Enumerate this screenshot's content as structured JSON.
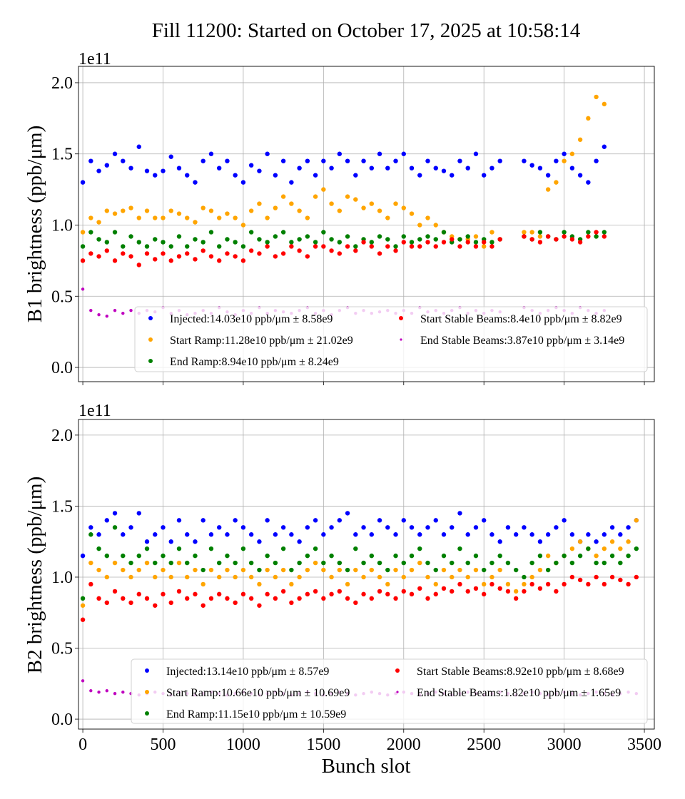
{
  "title": "Fill 11200: Started on October 17, 2025 at 10:58:14",
  "chart_data": [
    {
      "type": "scatter",
      "panel": "B1",
      "ylabel": "B1 brightness (ppb/μm)",
      "offset_label": "1e11",
      "xlabel": "",
      "xlim": [
        -27,
        3562
      ],
      "ylim": [
        -0.1,
        2.115
      ],
      "yticks": [
        "0.0",
        "0.5",
        "1.0",
        "1.5",
        "2.0"
      ],
      "ytick_values": [
        0,
        0.5,
        1.0,
        1.5,
        2.0
      ],
      "xtick_values": [
        0,
        500,
        1000,
        1500,
        2000,
        2500,
        3000,
        3500
      ],
      "xticks": [],
      "grid": true,
      "legend_placement": "lower-right",
      "x_start": 0,
      "x_step": 50,
      "series": [
        {
          "name": "Injected:14.03e10 ppb/μm ± 8.58e9",
          "color": "#0000ff",
          "y": [
            1.3,
            1.45,
            1.38,
            1.42,
            1.5,
            1.45,
            1.4,
            1.55,
            1.38,
            1.35,
            1.38,
            1.48,
            1.4,
            1.35,
            1.3,
            1.45,
            1.5,
            1.4,
            1.45,
            1.35,
            1.3,
            1.42,
            1.38,
            1.5,
            1.35,
            1.45,
            1.3,
            1.4,
            1.45,
            1.35,
            1.45,
            1.4,
            1.5,
            1.45,
            1.35,
            1.45,
            1.4,
            1.5,
            1.4,
            1.45,
            1.5,
            1.4,
            1.35,
            1.45,
            1.4,
            1.38,
            1.35,
            1.45,
            1.4,
            1.5,
            1.35,
            1.4,
            1.45,
            null,
            null,
            1.45,
            1.42,
            1.4,
            1.35,
            1.45,
            1.5,
            1.4,
            1.35,
            1.3,
            1.45,
            1.55
          ]
        },
        {
          "name": "Start Ramp:11.28e10 ppb/μm ± 21.02e9",
          "color": "#ffa500",
          "y": [
            0.95,
            1.05,
            1.02,
            1.1,
            1.08,
            1.1,
            1.12,
            1.05,
            1.1,
            1.05,
            1.05,
            1.1,
            1.08,
            1.05,
            1.02,
            1.12,
            1.1,
            1.05,
            1.08,
            1.05,
            1.0,
            1.1,
            1.15,
            1.05,
            1.12,
            1.2,
            1.15,
            1.1,
            1.05,
            1.2,
            1.25,
            1.15,
            1.1,
            1.2,
            1.18,
            1.12,
            1.15,
            1.1,
            1.05,
            1.15,
            1.12,
            1.08,
            1.0,
            1.05,
            1.0,
            0.95,
            0.92,
            0.9,
            0.9,
            0.92,
            0.85,
            0.95,
            0.9,
            null,
            null,
            0.95,
            0.95,
            0.92,
            1.25,
            1.3,
            1.45,
            1.5,
            1.6,
            1.75,
            1.9,
            1.85
          ]
        },
        {
          "name": "End Ramp:8.94e10 ppb/μm ± 8.24e9",
          "color": "#008000",
          "y": [
            0.85,
            0.95,
            0.9,
            0.88,
            0.95,
            0.85,
            0.92,
            0.88,
            0.85,
            0.9,
            0.88,
            0.85,
            0.92,
            0.85,
            0.9,
            0.88,
            0.95,
            0.85,
            0.9,
            0.88,
            0.85,
            0.95,
            0.9,
            0.88,
            0.92,
            0.95,
            0.88,
            0.9,
            0.92,
            0.88,
            0.95,
            0.9,
            0.88,
            0.92,
            0.85,
            0.9,
            0.88,
            0.92,
            0.9,
            0.85,
            0.92,
            0.88,
            0.9,
            0.92,
            0.9,
            0.95,
            0.88,
            0.9,
            0.92,
            0.88,
            0.9,
            0.88,
            0.9,
            null,
            null,
            0.92,
            0.9,
            0.95,
            0.92,
            0.9,
            0.95,
            0.92,
            0.9,
            0.95,
            0.92,
            0.95
          ]
        },
        {
          "name": "Start Stable Beams:8.4e10 ppb/μm ± 8.82e9",
          "color": "#ff0000",
          "y": [
            0.75,
            0.8,
            0.78,
            0.82,
            0.75,
            0.8,
            0.78,
            0.72,
            0.8,
            0.76,
            0.8,
            0.75,
            0.78,
            0.8,
            0.76,
            0.82,
            0.78,
            0.75,
            0.8,
            0.78,
            0.75,
            0.82,
            0.8,
            0.85,
            0.78,
            0.8,
            0.85,
            0.82,
            0.78,
            0.85,
            0.85,
            0.82,
            0.8,
            0.85,
            0.82,
            0.88,
            0.85,
            0.8,
            0.85,
            0.82,
            0.88,
            0.85,
            0.85,
            0.88,
            0.85,
            0.88,
            0.9,
            0.85,
            0.88,
            0.85,
            0.88,
            0.85,
            0.9,
            null,
            null,
            0.92,
            0.9,
            0.88,
            0.92,
            0.9,
            0.92,
            0.9,
            0.88,
            0.92,
            0.95,
            0.92
          ]
        },
        {
          "name": "End Stable Beams:3.87e10 ppb/μm ± 3.14e9",
          "color": "#bf00bf",
          "y": [
            0.55,
            0.4,
            0.37,
            0.36,
            0.4,
            0.38,
            0.4,
            0.38,
            0.4,
            0.39,
            0.42,
            0.38,
            0.4,
            0.37,
            0.38,
            0.4,
            0.38,
            0.42,
            0.39,
            0.37,
            0.4,
            0.38,
            0.42,
            0.38,
            0.4,
            0.39,
            0.38,
            0.4,
            0.42,
            0.38,
            0.4,
            0.37,
            0.4,
            0.42,
            0.38,
            0.4,
            0.38,
            0.39,
            0.4,
            0.38,
            0.4,
            0.38,
            0.42,
            0.39,
            0.4,
            0.38,
            0.4,
            0.42,
            0.38,
            0.4,
            0.38,
            0.4,
            0.39,
            null,
            null,
            0.42,
            0.4,
            0.38,
            0.4,
            0.42,
            0.4,
            0.38,
            0.42,
            0.4,
            0.38,
            0.4
          ]
        }
      ]
    },
    {
      "type": "scatter",
      "panel": "B2",
      "ylabel": "B2 brightness (ppb/μm)",
      "offset_label": "1e11",
      "xlabel": "Bunch slot",
      "xlim": [
        -27,
        3562
      ],
      "ylim": [
        -0.07,
        2.11
      ],
      "yticks": [
        "0.0",
        "0.5",
        "1.0",
        "1.5",
        "2.0"
      ],
      "ytick_values": [
        0,
        0.5,
        1.0,
        1.5,
        2.0
      ],
      "xtick_values": [
        0,
        500,
        1000,
        1500,
        2000,
        2500,
        3000,
        3500
      ],
      "xticks": [
        "0",
        "500",
        "1000",
        "1500",
        "2000",
        "2500",
        "3000",
        "3500"
      ],
      "grid": true,
      "legend_placement": "lower-right",
      "x_start": 0,
      "x_step": 50,
      "series": [
        {
          "name": "Injected:13.14e10 ppb/μm ± 8.57e9",
          "color": "#0000ff",
          "y": [
            1.15,
            1.35,
            1.3,
            1.4,
            1.45,
            1.3,
            1.35,
            1.45,
            1.25,
            1.3,
            1.35,
            1.25,
            1.4,
            1.3,
            1.25,
            1.4,
            1.3,
            1.35,
            1.3,
            1.4,
            1.35,
            1.3,
            1.25,
            1.4,
            1.3,
            1.35,
            1.3,
            1.25,
            1.35,
            1.4,
            1.3,
            1.35,
            1.4,
            1.45,
            1.3,
            1.35,
            1.3,
            1.4,
            1.35,
            1.3,
            1.4,
            1.35,
            1.3,
            1.35,
            1.4,
            1.3,
            1.35,
            1.45,
            1.3,
            1.35,
            1.4,
            1.3,
            1.25,
            1.35,
            1.3,
            1.35,
            1.3,
            1.25,
            1.3,
            1.35,
            1.4,
            1.3,
            1.25,
            1.3,
            1.25,
            1.3,
            1.35,
            1.3,
            1.35,
            1.4
          ]
        },
        {
          "name": "Start Ramp:10.66e10 ppb/μm ± 10.69e9",
          "color": "#ffa500",
          "y": [
            0.8,
            1.1,
            1.05,
            1.0,
            1.1,
            1.05,
            1.0,
            1.05,
            1.1,
            1.0,
            1.05,
            1.0,
            1.1,
            1.0,
            1.05,
            0.95,
            1.05,
            1.0,
            1.05,
            1.0,
            1.05,
            1.0,
            0.95,
            1.05,
            1.0,
            1.05,
            0.95,
            1.0,
            1.05,
            1.1,
            1.05,
            1.0,
            1.05,
            0.95,
            1.05,
            1.0,
            1.05,
            1.0,
            0.95,
            1.05,
            1.0,
            1.05,
            1.1,
            1.0,
            0.95,
            1.05,
            1.0,
            1.05,
            1.0,
            1.05,
            0.95,
            1.0,
            1.05,
            0.95,
            0.9,
            0.95,
            1.0,
            1.05,
            1.15,
            1.1,
            1.15,
            1.2,
            1.25,
            1.2,
            1.15,
            1.2,
            1.25,
            1.2,
            1.25,
            1.4
          ]
        },
        {
          "name": "End Ramp:11.15e10 ppb/μm ± 10.59e9",
          "color": "#008000",
          "y": [
            0.85,
            1.3,
            1.2,
            1.15,
            1.35,
            1.15,
            1.1,
            1.15,
            1.2,
            1.1,
            1.15,
            1.1,
            1.2,
            1.1,
            1.15,
            1.05,
            1.2,
            1.1,
            1.15,
            1.1,
            1.2,
            1.1,
            1.05,
            1.15,
            1.1,
            1.2,
            1.05,
            1.1,
            1.15,
            1.2,
            1.1,
            1.15,
            1.1,
            1.05,
            1.2,
            1.1,
            1.15,
            1.1,
            1.05,
            1.15,
            1.1,
            1.15,
            1.2,
            1.1,
            1.05,
            1.15,
            1.1,
            1.2,
            1.1,
            1.15,
            1.05,
            1.1,
            1.15,
            1.1,
            1.05,
            1.0,
            1.1,
            1.15,
            1.05,
            1.1,
            1.15,
            1.1,
            1.15,
            1.2,
            1.1,
            1.1,
            1.15,
            1.1,
            1.15,
            1.2
          ]
        },
        {
          "name": "Start Stable Beams:8.92e10 ppb/μm ± 8.68e9",
          "color": "#ff0000",
          "y": [
            0.7,
            0.95,
            0.85,
            0.82,
            0.9,
            0.85,
            0.82,
            0.88,
            0.85,
            0.8,
            0.88,
            0.82,
            0.9,
            0.85,
            0.88,
            0.8,
            0.85,
            0.88,
            0.85,
            0.82,
            0.88,
            0.85,
            0.8,
            0.88,
            0.85,
            0.9,
            0.82,
            0.85,
            0.88,
            0.9,
            0.85,
            0.88,
            0.9,
            0.85,
            0.82,
            0.88,
            0.85,
            0.9,
            0.88,
            0.85,
            0.9,
            0.88,
            0.92,
            0.85,
            0.88,
            0.92,
            0.9,
            0.95,
            0.9,
            0.92,
            0.88,
            0.95,
            0.92,
            0.9,
            0.85,
            0.9,
            0.95,
            0.92,
            0.95,
            0.9,
            0.95,
            1.0,
            0.98,
            0.95,
            1.0,
            0.95,
            1.0,
            0.98,
            0.95,
            1.0
          ]
        },
        {
          "name": "End Stable Beams:1.82e10 ppb/μm ± 1.65e9",
          "color": "#bf00bf",
          "y": [
            0.27,
            0.2,
            0.19,
            0.2,
            0.18,
            0.19,
            0.18,
            0.17,
            0.18,
            0.19,
            0.18,
            0.17,
            0.19,
            0.18,
            0.17,
            0.18,
            0.19,
            0.18,
            0.17,
            0.18,
            0.19,
            0.18,
            0.17,
            0.18,
            0.19,
            0.18,
            0.17,
            0.18,
            0.19,
            0.18,
            0.17,
            0.18,
            0.19,
            0.18,
            0.17,
            0.18,
            0.19,
            0.18,
            0.17,
            0.18,
            0.19,
            0.18,
            0.17,
            0.18,
            0.19,
            0.18,
            0.17,
            0.18,
            0.19,
            0.18,
            0.17,
            0.18,
            0.19,
            0.18,
            0.17,
            0.18,
            0.19,
            0.18,
            0.17,
            0.18,
            0.19,
            0.18,
            0.17,
            0.18,
            0.19,
            0.18,
            0.17,
            0.18,
            0.19,
            0.18
          ]
        }
      ]
    }
  ]
}
